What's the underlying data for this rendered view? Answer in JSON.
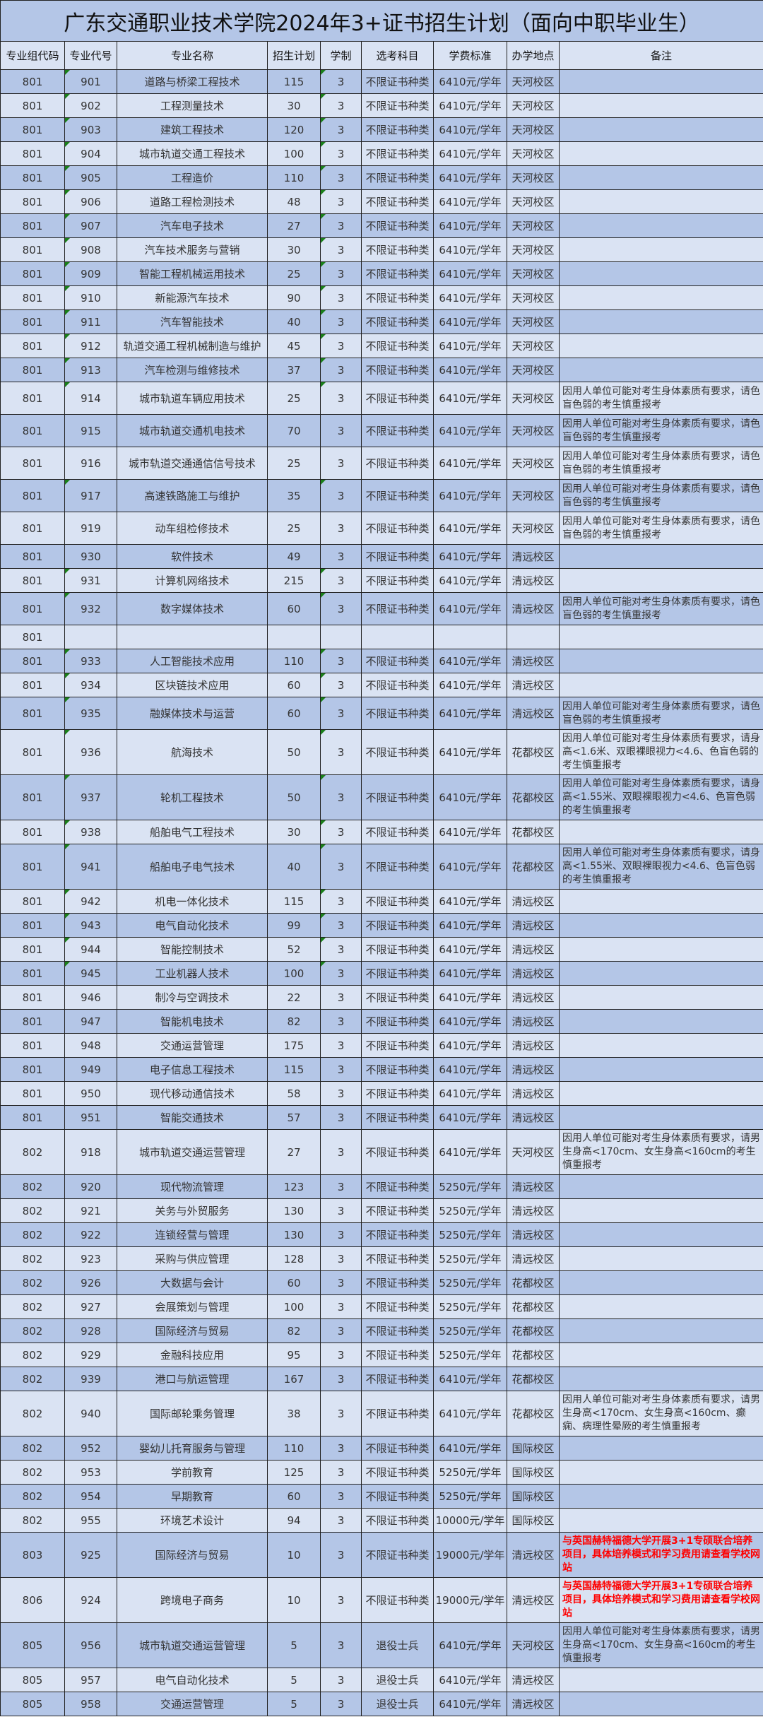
{
  "title": "广东交通职业技术学院2024年3+证书招生计划（面向中职毕业生）",
  "headers": [
    "专业组代码",
    "专业代号",
    "专业名称",
    "招生计划",
    "学制",
    "选考科目",
    "学费标准",
    "办学地点",
    "备注"
  ],
  "colors": {
    "row_dark": "#b4c6e7",
    "row_light": "#dae3f3",
    "note_red": "#ff0000",
    "comment_marker": "#1a7f1a"
  },
  "rows": [
    {
      "group": "801",
      "code": "901",
      "name": "道路与桥梁工程技术",
      "plan": "115",
      "years": "3",
      "subject": "不限证书种类",
      "fee": "6410元/学年",
      "campus": "天河校区",
      "note": "",
      "marker": true
    },
    {
      "group": "801",
      "code": "902",
      "name": "工程测量技术",
      "plan": "30",
      "years": "3",
      "subject": "不限证书种类",
      "fee": "6410元/学年",
      "campus": "天河校区",
      "note": "",
      "marker": true
    },
    {
      "group": "801",
      "code": "903",
      "name": "建筑工程技术",
      "plan": "120",
      "years": "3",
      "subject": "不限证书种类",
      "fee": "6410元/学年",
      "campus": "天河校区",
      "note": "",
      "marker": true
    },
    {
      "group": "801",
      "code": "904",
      "name": "城市轨道交通工程技术",
      "plan": "100",
      "years": "3",
      "subject": "不限证书种类",
      "fee": "6410元/学年",
      "campus": "天河校区",
      "note": "",
      "marker": true
    },
    {
      "group": "801",
      "code": "905",
      "name": "工程造价",
      "plan": "110",
      "years": "3",
      "subject": "不限证书种类",
      "fee": "6410元/学年",
      "campus": "天河校区",
      "note": "",
      "marker": true
    },
    {
      "group": "801",
      "code": "906",
      "name": "道路工程检测技术",
      "plan": "48",
      "years": "3",
      "subject": "不限证书种类",
      "fee": "6410元/学年",
      "campus": "天河校区",
      "note": "",
      "marker": true
    },
    {
      "group": "801",
      "code": "907",
      "name": "汽车电子技术",
      "plan": "27",
      "years": "3",
      "subject": "不限证书种类",
      "fee": "6410元/学年",
      "campus": "天河校区",
      "note": "",
      "marker": true
    },
    {
      "group": "801",
      "code": "908",
      "name": "汽车技术服务与营销",
      "plan": "30",
      "years": "3",
      "subject": "不限证书种类",
      "fee": "6410元/学年",
      "campus": "天河校区",
      "note": "",
      "marker": true
    },
    {
      "group": "801",
      "code": "909",
      "name": "智能工程机械运用技术",
      "plan": "25",
      "years": "3",
      "subject": "不限证书种类",
      "fee": "6410元/学年",
      "campus": "天河校区",
      "note": "",
      "marker": true
    },
    {
      "group": "801",
      "code": "910",
      "name": "新能源汽车技术",
      "plan": "90",
      "years": "3",
      "subject": "不限证书种类",
      "fee": "6410元/学年",
      "campus": "天河校区",
      "note": "",
      "marker": true
    },
    {
      "group": "801",
      "code": "911",
      "name": "汽车智能技术",
      "plan": "40",
      "years": "3",
      "subject": "不限证书种类",
      "fee": "6410元/学年",
      "campus": "天河校区",
      "note": "",
      "marker": true
    },
    {
      "group": "801",
      "code": "912",
      "name": "轨道交通工程机械制造与维护",
      "plan": "45",
      "years": "3",
      "subject": "不限证书种类",
      "fee": "6410元/学年",
      "campus": "天河校区",
      "note": "",
      "marker": true
    },
    {
      "group": "801",
      "code": "913",
      "name": "汽车检测与维修技术",
      "plan": "37",
      "years": "3",
      "subject": "不限证书种类",
      "fee": "6410元/学年",
      "campus": "天河校区",
      "note": "",
      "marker": true
    },
    {
      "group": "801",
      "code": "914",
      "name": "城市轨道车辆应用技术",
      "plan": "25",
      "years": "3",
      "subject": "不限证书种类",
      "fee": "6410元/学年",
      "campus": "天河校区",
      "note": "因用人单位可能对考生身体素质有要求，请色盲色弱的考生慎重报考",
      "marker": true
    },
    {
      "group": "801",
      "code": "915",
      "name": "城市轨道交通机电技术",
      "plan": "70",
      "years": "3",
      "subject": "不限证书种类",
      "fee": "6410元/学年",
      "campus": "天河校区",
      "note": "因用人单位可能对考生身体素质有要求，请色盲色弱的考生慎重报考",
      "marker": false
    },
    {
      "group": "801",
      "code": "916",
      "name": "城市轨道交通通信信号技术",
      "plan": "25",
      "years": "3",
      "subject": "不限证书种类",
      "fee": "6410元/学年",
      "campus": "天河校区",
      "note": "因用人单位可能对考生身体素质有要求，请色盲色弱的考生慎重报考",
      "marker": false
    },
    {
      "group": "801",
      "code": "917",
      "name": "高速铁路施工与维护",
      "plan": "35",
      "years": "3",
      "subject": "不限证书种类",
      "fee": "6410元/学年",
      "campus": "天河校区",
      "note": "因用人单位可能对考生身体素质有要求，请色盲色弱的考生慎重报考",
      "marker": true
    },
    {
      "group": "801",
      "code": "919",
      "name": "动车组检修技术",
      "plan": "25",
      "years": "3",
      "subject": "不限证书种类",
      "fee": "6410元/学年",
      "campus": "天河校区",
      "note": "因用人单位可能对考生身体素质有要求，请色盲色弱的考生慎重报考",
      "marker": false
    },
    {
      "group": "801",
      "code": "930",
      "name": "软件技术",
      "plan": "49",
      "years": "3",
      "subject": "不限证书种类",
      "fee": "6410元/学年",
      "campus": "清远校区",
      "note": "",
      "marker": false
    },
    {
      "group": "801",
      "code": "931",
      "name": "计算机网络技术",
      "plan": "215",
      "years": "3",
      "subject": "不限证书种类",
      "fee": "6410元/学年",
      "campus": "清远校区",
      "note": "",
      "marker": true
    },
    {
      "group": "801",
      "code": "932",
      "name": "数字媒体技术",
      "plan": "60",
      "years": "3",
      "subject": "不限证书种类",
      "fee": "6410元/学年",
      "campus": "清远校区",
      "note": "因用人单位可能对考生身体素质有要求，请色盲色弱的考生慎重报考",
      "marker": true
    },
    {
      "group": "801",
      "code": "",
      "name": "",
      "plan": "",
      "years": "",
      "subject": "",
      "fee": "",
      "campus": "",
      "note": "",
      "marker": false
    },
    {
      "group": "801",
      "code": "933",
      "name": "人工智能技术应用",
      "plan": "110",
      "years": "3",
      "subject": "不限证书种类",
      "fee": "6410元/学年",
      "campus": "清远校区",
      "note": "",
      "marker": true
    },
    {
      "group": "801",
      "code": "934",
      "name": "区块链技术应用",
      "plan": "60",
      "years": "3",
      "subject": "不限证书种类",
      "fee": "6410元/学年",
      "campus": "清远校区",
      "note": "",
      "marker": true
    },
    {
      "group": "801",
      "code": "935",
      "name": "融媒体技术与运营",
      "plan": "60",
      "years": "3",
      "subject": "不限证书种类",
      "fee": "6410元/学年",
      "campus": "清远校区",
      "note": "因用人单位可能对考生身体素质有要求，请色盲色弱的考生慎重报考",
      "marker": true
    },
    {
      "group": "801",
      "code": "936",
      "name": "航海技术",
      "plan": "50",
      "years": "3",
      "subject": "不限证书种类",
      "fee": "6410元/学年",
      "campus": "花都校区",
      "note": "因用人单位可能对考生身体素质有要求，请身高<1.6米、双眼裸眼视力<4.6、色盲色弱的考生慎重报考",
      "marker": true
    },
    {
      "group": "801",
      "code": "937",
      "name": "轮机工程技术",
      "plan": "50",
      "years": "3",
      "subject": "不限证书种类",
      "fee": "6410元/学年",
      "campus": "花都校区",
      "note": "因用人单位可能对考生身体素质有要求，请身高<1.55米、双眼裸眼视力<4.6、色盲色弱的考生慎重报考",
      "marker": true
    },
    {
      "group": "801",
      "code": "938",
      "name": "船舶电气工程技术",
      "plan": "30",
      "years": "3",
      "subject": "不限证书种类",
      "fee": "6410元/学年",
      "campus": "花都校区",
      "note": "",
      "marker": true
    },
    {
      "group": "801",
      "code": "941",
      "name": "船舶电子电气技术",
      "plan": "40",
      "years": "3",
      "subject": "不限证书种类",
      "fee": "6410元/学年",
      "campus": "花都校区",
      "note": "因用人单位可能对考生身体素质有要求，请身高<1.55米、双眼裸眼视力<4.6、色盲色弱的考生慎重报考",
      "marker": true
    },
    {
      "group": "801",
      "code": "942",
      "name": "机电一体化技术",
      "plan": "115",
      "years": "3",
      "subject": "不限证书种类",
      "fee": "6410元/学年",
      "campus": "清远校区",
      "note": "",
      "marker": true
    },
    {
      "group": "801",
      "code": "943",
      "name": "电气自动化技术",
      "plan": "99",
      "years": "3",
      "subject": "不限证书种类",
      "fee": "6410元/学年",
      "campus": "清远校区",
      "note": "",
      "marker": true
    },
    {
      "group": "801",
      "code": "944",
      "name": "智能控制技术",
      "plan": "52",
      "years": "3",
      "subject": "不限证书种类",
      "fee": "6410元/学年",
      "campus": "清远校区",
      "note": "",
      "marker": true
    },
    {
      "group": "801",
      "code": "945",
      "name": "工业机器人技术",
      "plan": "100",
      "years": "3",
      "subject": "不限证书种类",
      "fee": "6410元/学年",
      "campus": "清远校区",
      "note": "",
      "marker": true
    },
    {
      "group": "801",
      "code": "946",
      "name": "制冷与空调技术",
      "plan": "22",
      "years": "3",
      "subject": "不限证书种类",
      "fee": "6410元/学年",
      "campus": "清远校区",
      "note": "",
      "marker": false
    },
    {
      "group": "801",
      "code": "947",
      "name": "智能机电技术",
      "plan": "82",
      "years": "3",
      "subject": "不限证书种类",
      "fee": "6410元/学年",
      "campus": "清远校区",
      "note": "",
      "marker": false
    },
    {
      "group": "801",
      "code": "948",
      "name": "交通运营管理",
      "plan": "175",
      "years": "3",
      "subject": "不限证书种类",
      "fee": "6410元/学年",
      "campus": "清远校区",
      "note": "",
      "marker": false
    },
    {
      "group": "801",
      "code": "949",
      "name": "电子信息工程技术",
      "plan": "115",
      "years": "3",
      "subject": "不限证书种类",
      "fee": "6410元/学年",
      "campus": "清远校区",
      "note": "",
      "marker": false
    },
    {
      "group": "801",
      "code": "950",
      "name": "现代移动通信技术",
      "plan": "58",
      "years": "3",
      "subject": "不限证书种类",
      "fee": "6410元/学年",
      "campus": "清远校区",
      "note": "",
      "marker": false
    },
    {
      "group": "801",
      "code": "951",
      "name": "智能交通技术",
      "plan": "57",
      "years": "3",
      "subject": "不限证书种类",
      "fee": "6410元/学年",
      "campus": "清远校区",
      "note": "",
      "marker": false
    },
    {
      "group": "802",
      "code": "918",
      "name": "城市轨道交通运营管理",
      "plan": "27",
      "years": "3",
      "subject": "不限证书种类",
      "fee": "6410元/学年",
      "campus": "天河校区",
      "note": "因用人单位可能对考生身体素质有要求，请男生身高<170cm、女生身高<160cm的考生慎重报考",
      "marker": false
    },
    {
      "group": "802",
      "code": "920",
      "name": "现代物流管理",
      "plan": "123",
      "years": "3",
      "subject": "不限证书种类",
      "fee": "5250元/学年",
      "campus": "清远校区",
      "note": "",
      "marker": false
    },
    {
      "group": "802",
      "code": "921",
      "name": "关务与外贸服务",
      "plan": "130",
      "years": "3",
      "subject": "不限证书种类",
      "fee": "5250元/学年",
      "campus": "清远校区",
      "note": "",
      "marker": false
    },
    {
      "group": "802",
      "code": "922",
      "name": "连锁经营与管理",
      "plan": "130",
      "years": "3",
      "subject": "不限证书种类",
      "fee": "5250元/学年",
      "campus": "清远校区",
      "note": "",
      "marker": false
    },
    {
      "group": "802",
      "code": "923",
      "name": "采购与供应管理",
      "plan": "128",
      "years": "3",
      "subject": "不限证书种类",
      "fee": "5250元/学年",
      "campus": "清远校区",
      "note": "",
      "marker": false
    },
    {
      "group": "802",
      "code": "926",
      "name": "大数据与会计",
      "plan": "60",
      "years": "3",
      "subject": "不限证书种类",
      "fee": "5250元/学年",
      "campus": "花都校区",
      "note": "",
      "marker": false
    },
    {
      "group": "802",
      "code": "927",
      "name": "会展策划与管理",
      "plan": "100",
      "years": "3",
      "subject": "不限证书种类",
      "fee": "5250元/学年",
      "campus": "花都校区",
      "note": "",
      "marker": false
    },
    {
      "group": "802",
      "code": "928",
      "name": "国际经济与贸易",
      "plan": "82",
      "years": "3",
      "subject": "不限证书种类",
      "fee": "5250元/学年",
      "campus": "花都校区",
      "note": "",
      "marker": false
    },
    {
      "group": "802",
      "code": "929",
      "name": "金融科技应用",
      "plan": "95",
      "years": "3",
      "subject": "不限证书种类",
      "fee": "5250元/学年",
      "campus": "花都校区",
      "note": "",
      "marker": false
    },
    {
      "group": "802",
      "code": "939",
      "name": "港口与航运管理",
      "plan": "167",
      "years": "3",
      "subject": "不限证书种类",
      "fee": "6410元/学年",
      "campus": "花都校区",
      "note": "",
      "marker": false
    },
    {
      "group": "802",
      "code": "940",
      "name": "国际邮轮乘务管理",
      "plan": "38",
      "years": "3",
      "subject": "不限证书种类",
      "fee": "6410元/学年",
      "campus": "花都校区",
      "note": "因用人单位可能对考生身体素质有要求，请男生身高<170cm、女生身高<160cm、癫痫、病理性晕厥的考生慎重报考",
      "marker": false
    },
    {
      "group": "802",
      "code": "952",
      "name": "婴幼儿托育服务与管理",
      "plan": "110",
      "years": "3",
      "subject": "不限证书种类",
      "fee": "6410元/学年",
      "campus": "国际校区",
      "note": "",
      "marker": false
    },
    {
      "group": "802",
      "code": "953",
      "name": "学前教育",
      "plan": "125",
      "years": "3",
      "subject": "不限证书种类",
      "fee": "5250元/学年",
      "campus": "国际校区",
      "note": "",
      "marker": false
    },
    {
      "group": "802",
      "code": "954",
      "name": "早期教育",
      "plan": "60",
      "years": "3",
      "subject": "不限证书种类",
      "fee": "5250元/学年",
      "campus": "国际校区",
      "note": "",
      "marker": false
    },
    {
      "group": "802",
      "code": "955",
      "name": "环境艺术设计",
      "plan": "94",
      "years": "3",
      "subject": "不限证书种类",
      "fee": "10000元/学年",
      "campus": "国际校区",
      "note": "",
      "marker": false
    },
    {
      "group": "803",
      "code": "925",
      "name": "国际经济与贸易",
      "plan": "10",
      "years": "3",
      "subject": "不限证书种类",
      "fee": "19000元/学年",
      "campus": "清远校区",
      "note": "与英国赫特福德大学开展3+1专硕联合培养项目，具体培养模式和学习费用请查看学校网站",
      "note_red": true,
      "marker": false
    },
    {
      "group": "806",
      "code": "924",
      "name": "跨境电子商务",
      "plan": "10",
      "years": "3",
      "subject": "不限证书种类",
      "fee": "19000元/学年",
      "campus": "清远校区",
      "note": "与英国赫特福德大学开展3+1专硕联合培养项目，具体培养模式和学习费用请查看学校网站",
      "note_red": true,
      "marker": false
    },
    {
      "group": "805",
      "code": "956",
      "name": "城市轨道交通运营管理",
      "plan": "5",
      "years": "3",
      "subject": "退役士兵",
      "fee": "6410元/学年",
      "campus": "天河校区",
      "note": "因用人单位可能对考生身体素质有要求，请男生身高<170cm、女生身高<160cm的考生慎重报考",
      "marker": false
    },
    {
      "group": "805",
      "code": "957",
      "name": "电气自动化技术",
      "plan": "5",
      "years": "3",
      "subject": "退役士兵",
      "fee": "6410元/学年",
      "campus": "清远校区",
      "note": "",
      "marker": false
    },
    {
      "group": "805",
      "code": "958",
      "name": "交通运营管理",
      "plan": "5",
      "years": "3",
      "subject": "退役士兵",
      "fee": "6410元/学年",
      "campus": "清远校区",
      "note": "",
      "marker": false
    }
  ]
}
